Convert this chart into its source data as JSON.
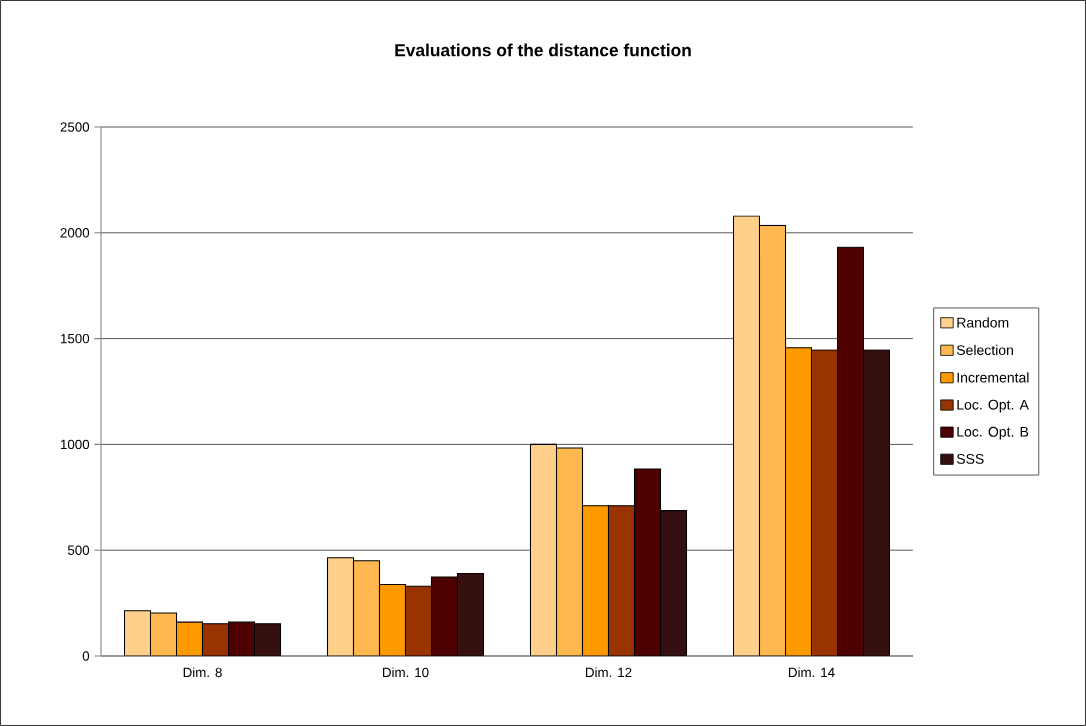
{
  "chart_data": {
    "type": "bar",
    "title": "Evaluations of the distance function",
    "categories": [
      "Dim. 8",
      "Dim. 10",
      "Dim. 12",
      "Dim. 14"
    ],
    "series": [
      {
        "name": "Random",
        "color": "#ffd08c",
        "values": [
          214,
          464,
          1000,
          2079
        ]
      },
      {
        "name": "Selection",
        "color": "#ffb850",
        "values": [
          203,
          450,
          983,
          2035
        ]
      },
      {
        "name": "Incremental",
        "color": "#ff9900",
        "values": [
          160,
          338,
          710,
          1457
        ]
      },
      {
        "name": "Loc. Opt. A",
        "color": "#993300",
        "values": [
          152,
          330,
          710,
          1446
        ]
      },
      {
        "name": "Loc. Opt. B",
        "color": "#4f0000",
        "values": [
          160,
          373,
          884,
          1932
        ]
      },
      {
        "name": "SSS",
        "color": "#361010",
        "values": [
          152,
          390,
          687,
          1446
        ]
      }
    ],
    "ylim": [
      0,
      2500
    ],
    "yticks": [
      0,
      500,
      1000,
      1500,
      2000,
      2500
    ],
    "grid": "y",
    "legend": "right"
  }
}
